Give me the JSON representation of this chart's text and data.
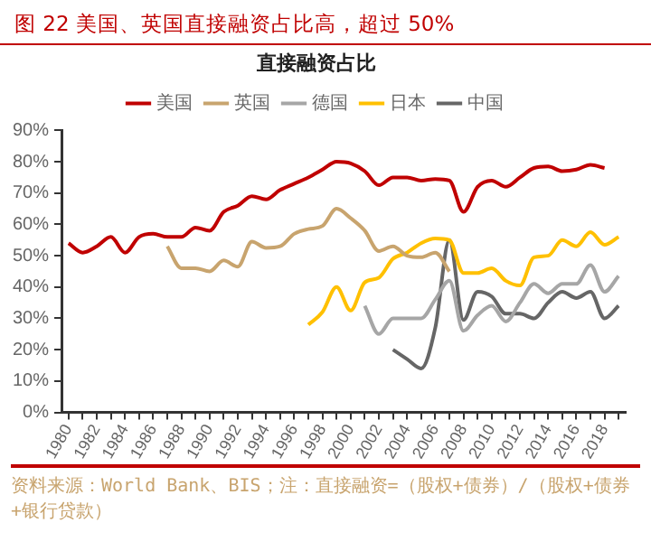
{
  "chart_data": {
    "type": "line",
    "title": "图 22   美国、英国直接融资占比高，超过 50%",
    "subtitle": "直接融资占比",
    "categories": [
      "1980",
      null,
      "1982",
      null,
      "1984",
      null,
      "1986",
      null,
      "1988",
      null,
      "1990",
      null,
      "1992",
      null,
      "1994",
      null,
      "1996",
      null,
      "1998",
      null,
      "2000",
      null,
      "2002",
      null,
      "2004",
      null,
      "2006",
      null,
      "2008",
      null,
      "2010",
      null,
      "2012",
      null,
      "2014",
      null,
      "2016",
      null,
      "2018",
      null
    ],
    "series": [
      {
        "name": "美国",
        "color": "#c00000",
        "values": [
          54,
          51,
          53,
          56,
          51,
          56,
          57,
          56,
          56,
          59,
          58,
          64,
          66,
          69,
          68,
          71,
          73,
          75,
          77.5,
          80,
          79.5,
          77,
          72.5,
          75,
          75,
          74,
          74.5,
          74,
          64,
          72,
          74,
          72,
          75,
          78,
          78.5,
          77,
          77.5,
          79,
          78,
          null
        ]
      },
      {
        "name": "英国",
        "color": "#c8a46e",
        "values": [
          null,
          null,
          null,
          null,
          null,
          null,
          null,
          53,
          46,
          46,
          45,
          48.5,
          46.5,
          54.5,
          52.5,
          53,
          57,
          58.5,
          59.5,
          65,
          62,
          58,
          51.5,
          53,
          50,
          49.5,
          51,
          45,
          null,
          null,
          null,
          null,
          null,
          null,
          null,
          null,
          null,
          null,
          null,
          null
        ]
      },
      {
        "name": "德国",
        "color": "#a6a6a6",
        "values": [
          null,
          null,
          null,
          null,
          null,
          null,
          null,
          null,
          null,
          null,
          null,
          null,
          null,
          null,
          null,
          null,
          null,
          null,
          null,
          null,
          null,
          34,
          25,
          30,
          30,
          30,
          36,
          42,
          26,
          31,
          34,
          29,
          35,
          41,
          38,
          41,
          41,
          47,
          38.5,
          43.5
        ]
      },
      {
        "name": "日本",
        "color": "#ffc000",
        "values": [
          null,
          null,
          null,
          null,
          null,
          null,
          null,
          null,
          null,
          null,
          null,
          null,
          null,
          null,
          null,
          null,
          null,
          28,
          32,
          40,
          32.5,
          41.5,
          43,
          49,
          51,
          54,
          55.5,
          55,
          44.5,
          44.5,
          46,
          42,
          40.5,
          49.5,
          50,
          55,
          53,
          57.5,
          53.5,
          56
        ]
      },
      {
        "name": "中国",
        "color": "#666666",
        "values": [
          null,
          null,
          null,
          null,
          null,
          null,
          null,
          null,
          null,
          null,
          null,
          null,
          null,
          null,
          null,
          null,
          null,
          null,
          null,
          null,
          null,
          null,
          null,
          20,
          17,
          14,
          27,
          55,
          29.5,
          38.5,
          37,
          31.5,
          31.5,
          30,
          35,
          38.5,
          36.5,
          38.5,
          30,
          34
        ]
      }
    ],
    "ylim": [
      0,
      90
    ],
    "yticks": [
      {
        "value": 0,
        "label": "0%"
      },
      {
        "value": 10,
        "label": "10%"
      },
      {
        "value": 20,
        "label": "20%"
      },
      {
        "value": 30,
        "label": "30%"
      },
      {
        "value": 40,
        "label": "40%"
      },
      {
        "value": 50,
        "label": "50%"
      },
      {
        "value": 60,
        "label": "60%"
      },
      {
        "value": 70,
        "label": "70%"
      },
      {
        "value": 80,
        "label": "80%"
      },
      {
        "value": 90,
        "label": "90%"
      }
    ],
    "grid": false,
    "legend": "top",
    "marker": "none",
    "line_style": "solid",
    "annotations": [
      "资料来源：World Bank、BIS；注：直接融资=（股权+债券）/（股权+债券+银行贷款）"
    ]
  }
}
